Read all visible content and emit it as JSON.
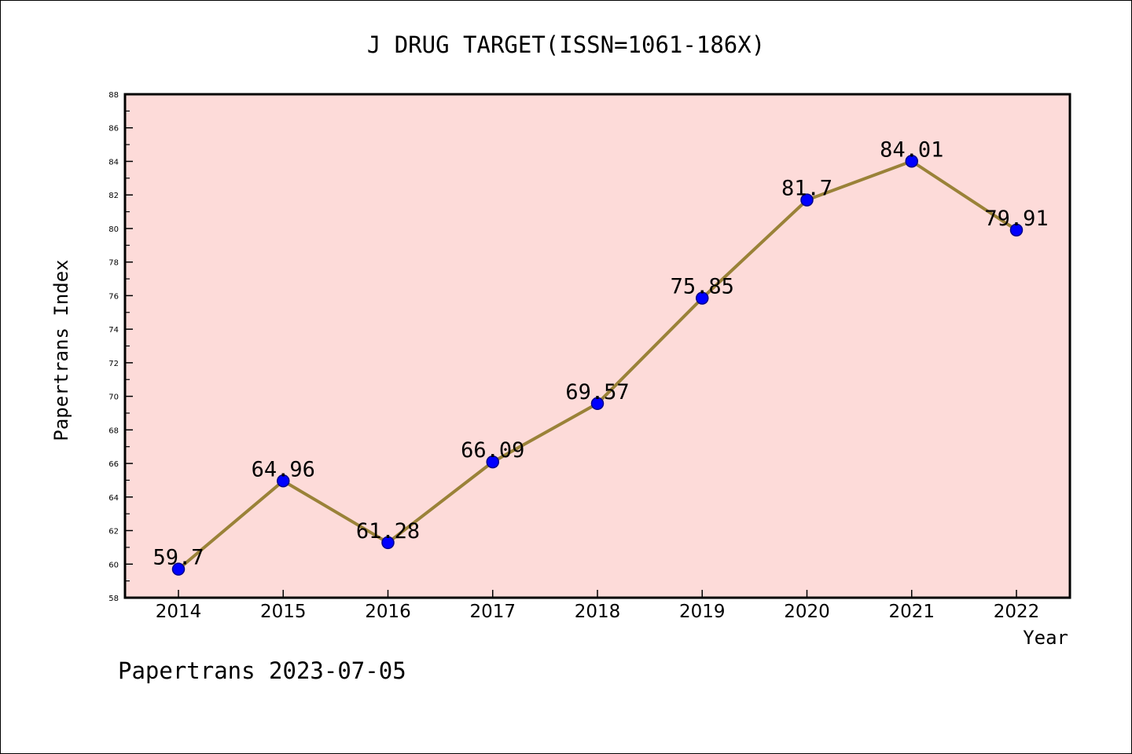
{
  "chart_data": {
    "type": "line",
    "title": "J DRUG TARGET(ISSN=1061-186X)",
    "xlabel": "Year",
    "ylabel": "Papertrans Index",
    "categories": [
      "2014",
      "2015",
      "2016",
      "2017",
      "2018",
      "2019",
      "2020",
      "2021",
      "2022"
    ],
    "values": [
      59.7,
      64.96,
      61.28,
      66.09,
      69.57,
      75.85,
      81.7,
      84.01,
      79.91
    ],
    "value_labels": [
      "59.7",
      "64.96",
      "61.28",
      "66.09",
      "69.57",
      "75.85",
      "81.7",
      "84.01",
      "79.91"
    ],
    "ylim": [
      58,
      88
    ],
    "yticks": [
      "58",
      "60",
      "62",
      "64",
      "66",
      "68",
      "70",
      "72",
      "74",
      "76",
      "78",
      "80",
      "82",
      "84",
      "86",
      "88"
    ],
    "grid": false,
    "footer": "Papertrans 2023-07-05",
    "colors": {
      "plot_background": "#fddbd9",
      "line": "#9a8238",
      "marker": "#0000ff",
      "marker_edge": "#00008b"
    }
  }
}
